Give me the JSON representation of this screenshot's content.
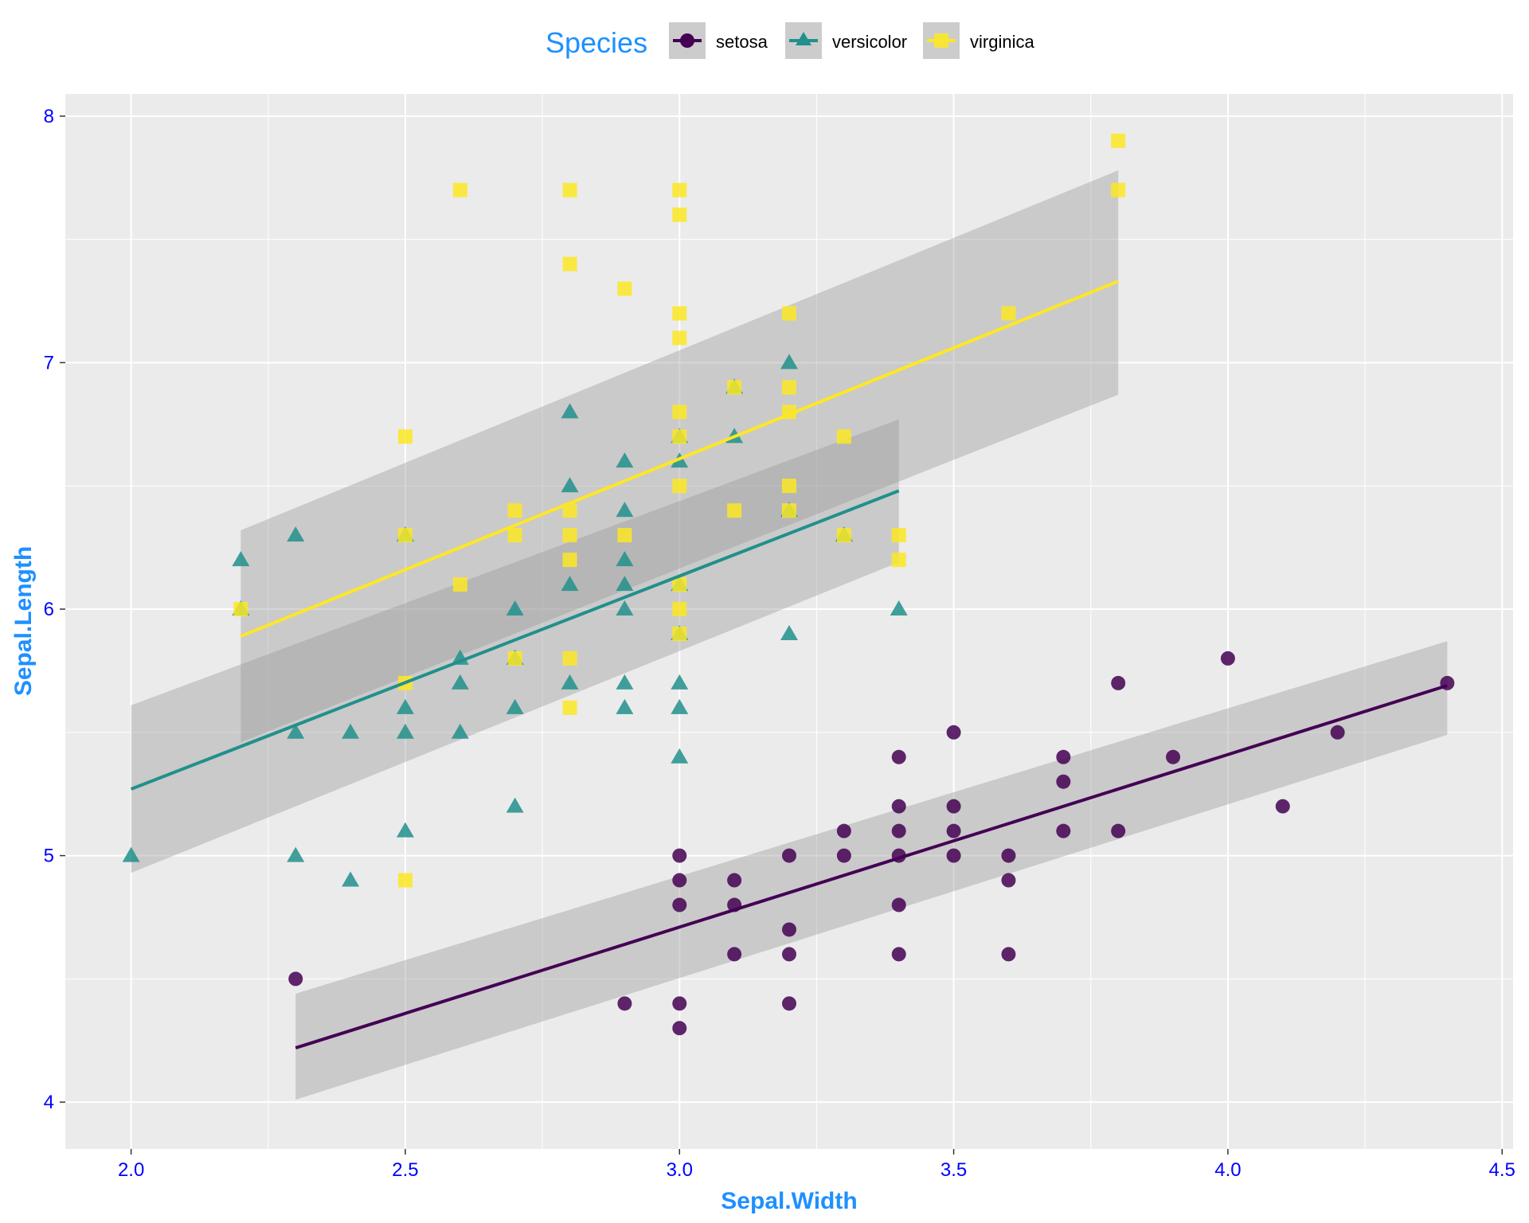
{
  "chart_data": {
    "type": "scatter",
    "title": "",
    "xlabel": "Sepal.Width",
    "ylabel": "Sepal.Length",
    "xlim": [
      1.88,
      4.52
    ],
    "ylim": [
      3.81,
      8.09
    ],
    "x_ticks": [
      2.0,
      2.5,
      3.0,
      3.5,
      4.0,
      4.5
    ],
    "x_tick_labels": [
      "2.0",
      "2.5",
      "3.0",
      "3.5",
      "4.0",
      "4.5"
    ],
    "y_ticks": [
      4,
      5,
      6,
      7,
      8
    ],
    "y_tick_labels": [
      "4",
      "5",
      "6",
      "7",
      "8"
    ],
    "grid": true,
    "background": "#ebebeb",
    "legend": {
      "title": "Species",
      "position": "top"
    },
    "series": [
      {
        "name": "setosa",
        "marker": "circle",
        "color": "#440154",
        "points": [
          [
            2.3,
            4.5
          ],
          [
            3.0,
            5.0
          ],
          [
            3.0,
            4.9
          ],
          [
            3.0,
            4.8
          ],
          [
            3.0,
            4.4
          ],
          [
            3.0,
            4.3
          ],
          [
            2.9,
            4.4
          ],
          [
            3.1,
            4.9
          ],
          [
            3.1,
            4.8
          ],
          [
            3.1,
            4.6
          ],
          [
            3.2,
            5.0
          ],
          [
            3.2,
            4.7
          ],
          [
            3.2,
            4.6
          ],
          [
            3.2,
            4.4
          ],
          [
            3.3,
            5.1
          ],
          [
            3.3,
            5.0
          ],
          [
            3.4,
            5.4
          ],
          [
            3.4,
            5.2
          ],
          [
            3.4,
            5.1
          ],
          [
            3.4,
            5.0
          ],
          [
            3.4,
            4.8
          ],
          [
            3.4,
            4.6
          ],
          [
            3.5,
            5.5
          ],
          [
            3.5,
            5.2
          ],
          [
            3.5,
            5.1
          ],
          [
            3.5,
            5.0
          ],
          [
            3.6,
            5.0
          ],
          [
            3.6,
            4.9
          ],
          [
            3.6,
            4.6
          ],
          [
            3.7,
            5.4
          ],
          [
            3.7,
            5.3
          ],
          [
            3.7,
            5.1
          ],
          [
            3.8,
            5.7
          ],
          [
            3.8,
            5.1
          ],
          [
            3.9,
            5.4
          ],
          [
            4.0,
            5.8
          ],
          [
            4.1,
            5.2
          ],
          [
            4.2,
            5.5
          ],
          [
            4.4,
            5.7
          ]
        ],
        "fit": {
          "x": [
            2.3,
            4.4
          ],
          "y": [
            4.22,
            5.69
          ],
          "lower": [
            4.01,
            5.49
          ],
          "upper": [
            4.44,
            5.87
          ]
        }
      },
      {
        "name": "versicolor",
        "marker": "triangle",
        "color": "#21908c",
        "points": [
          [
            2.0,
            5.0
          ],
          [
            2.2,
            6.2
          ],
          [
            2.2,
            6.0
          ],
          [
            2.3,
            6.3
          ],
          [
            2.3,
            5.5
          ],
          [
            2.3,
            5.0
          ],
          [
            2.4,
            5.5
          ],
          [
            2.4,
            4.9
          ],
          [
            2.5,
            6.3
          ],
          [
            2.5,
            5.6
          ],
          [
            2.5,
            5.5
          ],
          [
            2.5,
            5.1
          ],
          [
            2.6,
            5.8
          ],
          [
            2.6,
            5.7
          ],
          [
            2.6,
            5.5
          ],
          [
            2.7,
            6.0
          ],
          [
            2.7,
            5.8
          ],
          [
            2.7,
            5.6
          ],
          [
            2.7,
            5.2
          ],
          [
            2.8,
            6.8
          ],
          [
            2.8,
            6.5
          ],
          [
            2.8,
            6.1
          ],
          [
            2.8,
            5.7
          ],
          [
            2.9,
            6.6
          ],
          [
            2.9,
            6.4
          ],
          [
            2.9,
            6.2
          ],
          [
            2.9,
            6.1
          ],
          [
            2.9,
            6.0
          ],
          [
            2.9,
            5.7
          ],
          [
            2.9,
            5.6
          ],
          [
            3.0,
            6.7
          ],
          [
            3.0,
            6.6
          ],
          [
            3.0,
            6.1
          ],
          [
            3.0,
            5.9
          ],
          [
            3.0,
            5.7
          ],
          [
            3.0,
            5.6
          ],
          [
            3.0,
            5.4
          ],
          [
            3.1,
            6.9
          ],
          [
            3.1,
            6.7
          ],
          [
            3.2,
            7.0
          ],
          [
            3.2,
            6.4
          ],
          [
            3.2,
            5.9
          ],
          [
            3.3,
            6.3
          ],
          [
            3.4,
            6.0
          ]
        ],
        "fit": {
          "x": [
            2.0,
            3.4
          ],
          "y": [
            5.27,
            6.48
          ],
          "lower": [
            4.93,
            6.19
          ],
          "upper": [
            5.61,
            6.77
          ]
        }
      },
      {
        "name": "virginica",
        "marker": "square",
        "color": "#fde725",
        "points": [
          [
            2.2,
            6.0
          ],
          [
            2.5,
            6.7
          ],
          [
            2.5,
            6.3
          ],
          [
            2.5,
            5.7
          ],
          [
            2.5,
            4.9
          ],
          [
            2.6,
            7.7
          ],
          [
            2.6,
            6.1
          ],
          [
            2.7,
            6.4
          ],
          [
            2.7,
            6.3
          ],
          [
            2.7,
            5.8
          ],
          [
            2.8,
            7.7
          ],
          [
            2.8,
            7.4
          ],
          [
            2.8,
            6.4
          ],
          [
            2.8,
            6.3
          ],
          [
            2.8,
            6.2
          ],
          [
            2.8,
            5.8
          ],
          [
            2.8,
            5.6
          ],
          [
            2.9,
            7.3
          ],
          [
            2.9,
            6.3
          ],
          [
            3.0,
            7.7
          ],
          [
            3.0,
            7.6
          ],
          [
            3.0,
            7.2
          ],
          [
            3.0,
            7.1
          ],
          [
            3.0,
            6.8
          ],
          [
            3.0,
            6.7
          ],
          [
            3.0,
            6.5
          ],
          [
            3.0,
            6.1
          ],
          [
            3.0,
            6.0
          ],
          [
            3.0,
            5.9
          ],
          [
            3.1,
            6.9
          ],
          [
            3.1,
            6.4
          ],
          [
            3.2,
            7.2
          ],
          [
            3.2,
            6.9
          ],
          [
            3.2,
            6.8
          ],
          [
            3.2,
            6.5
          ],
          [
            3.2,
            6.4
          ],
          [
            3.3,
            6.7
          ],
          [
            3.3,
            6.3
          ],
          [
            3.4,
            6.3
          ],
          [
            3.4,
            6.2
          ],
          [
            3.6,
            7.2
          ],
          [
            3.8,
            7.9
          ],
          [
            3.8,
            7.7
          ]
        ],
        "fit": {
          "x": [
            2.2,
            3.8
          ],
          "y": [
            5.89,
            7.33
          ],
          "lower": [
            5.46,
            6.87
          ],
          "upper": [
            6.32,
            7.78
          ]
        }
      }
    ]
  }
}
